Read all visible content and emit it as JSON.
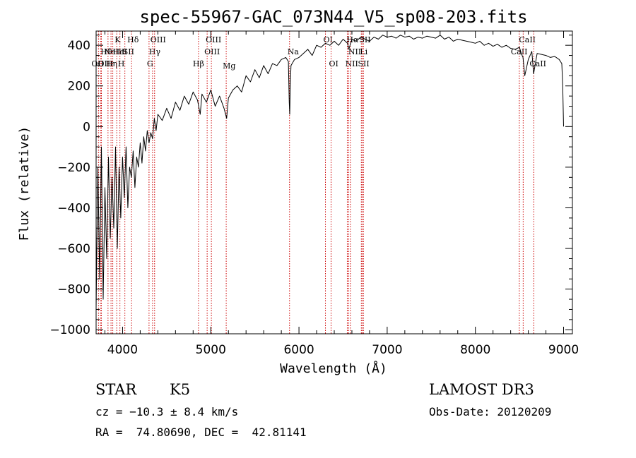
{
  "chart_data": {
    "type": "line",
    "title": "spec-55967-GAC_073N44_V5_sp08-203.fits",
    "xlabel": "Wavelength (Å)",
    "ylabel": "Flux (relative)",
    "xlim": [
      3700,
      9100
    ],
    "ylim": [
      -1020,
      470
    ],
    "xticks": [
      4000,
      5000,
      6000,
      7000,
      8000,
      9000
    ],
    "xtick_labels": [
      "4000",
      "5000",
      "6000",
      "7000",
      "8000",
      "9000"
    ],
    "yticks": [
      -1000,
      -800,
      -600,
      -400,
      -200,
      0,
      200,
      400
    ],
    "ytick_labels": [
      "−1000",
      "−800",
      "−600",
      "−400",
      "−200",
      "0",
      "200",
      "400"
    ],
    "series": [
      {
        "name": "flux",
        "x": [
          3700,
          3720,
          3740,
          3760,
          3780,
          3800,
          3820,
          3840,
          3860,
          3880,
          3900,
          3920,
          3940,
          3960,
          3980,
          4000,
          4020,
          4040,
          4060,
          4080,
          4100,
          4120,
          4140,
          4160,
          4180,
          4200,
          4220,
          4240,
          4260,
          4280,
          4300,
          4320,
          4340,
          4360,
          4380,
          4400,
          4450,
          4500,
          4550,
          4600,
          4650,
          4700,
          4750,
          4800,
          4850,
          4880,
          4900,
          4950,
          5000,
          5050,
          5100,
          5150,
          5180,
          5200,
          5250,
          5300,
          5350,
          5400,
          5450,
          5500,
          5550,
          5600,
          5650,
          5700,
          5750,
          5800,
          5850,
          5880,
          5890,
          5895,
          5900,
          5910,
          5950,
          6000,
          6050,
          6100,
          6150,
          6200,
          6250,
          6300,
          6350,
          6400,
          6450,
          6500,
          6550,
          6565,
          6600,
          6650,
          6700,
          6750,
          6800,
          6850,
          6900,
          6950,
          7000,
          7050,
          7100,
          7150,
          7200,
          7250,
          7300,
          7350,
          7400,
          7450,
          7500,
          7550,
          7600,
          7650,
          7700,
          7750,
          7800,
          7850,
          7900,
          7950,
          8000,
          8050,
          8100,
          8150,
          8200,
          8250,
          8300,
          8350,
          8400,
          8450,
          8500,
          8520,
          8540,
          8560,
          8600,
          8640,
          8660,
          8700,
          8750,
          8800,
          8850,
          8900,
          8950,
          8980,
          8990,
          9000
        ],
        "y": [
          -900,
          -200,
          -750,
          -100,
          -850,
          -300,
          -650,
          -150,
          -550,
          -250,
          -500,
          -100,
          -600,
          -200,
          -450,
          -150,
          -350,
          -100,
          -400,
          -200,
          -250,
          -120,
          -300,
          -150,
          -200,
          -80,
          -180,
          -50,
          -120,
          -20,
          -80,
          -30,
          -60,
          40,
          -20,
          60,
          30,
          90,
          40,
          120,
          80,
          150,
          110,
          170,
          130,
          60,
          160,
          120,
          180,
          100,
          150,
          90,
          40,
          140,
          180,
          200,
          170,
          250,
          220,
          280,
          240,
          300,
          260,
          310,
          300,
          330,
          340,
          320,
          120,
          60,
          180,
          300,
          330,
          340,
          360,
          380,
          350,
          400,
          390,
          410,
          400,
          420,
          400,
          430,
          410,
          380,
          430,
          420,
          440,
          430,
          420,
          440,
          430,
          450,
          440,
          445,
          435,
          450,
          440,
          445,
          430,
          440,
          435,
          445,
          440,
          435,
          450,
          430,
          440,
          420,
          430,
          425,
          420,
          415,
          410,
          420,
          400,
          410,
          395,
          405,
          390,
          400,
          385,
          380,
          390,
          360,
          340,
          250,
          330,
          370,
          260,
          360,
          355,
          350,
          340,
          345,
          330,
          310,
          200,
          0
        ]
      }
    ],
    "line_markers": [
      {
        "x": 3727,
        "label": "OII",
        "row": 2,
        "dx": -10
      },
      {
        "x": 3750,
        "label": "Hθ",
        "row": 1,
        "dx": 0
      },
      {
        "x": 3760,
        "label": "OIII",
        "row": 2,
        "dx": -5
      },
      {
        "x": 3835,
        "label": "Hη",
        "row": 2,
        "dx": -3
      },
      {
        "x": 3869,
        "label": "NeIII",
        "row": 1,
        "dx": -10
      },
      {
        "x": 3889,
        "label": "HeI",
        "row": 1,
        "dx": 0
      },
      {
        "x": 3934,
        "label": "K",
        "row": 0,
        "dx": -3
      },
      {
        "x": 3970,
        "label": "H",
        "row": 2,
        "dx": -3
      },
      {
        "x": 4026,
        "label": "SII",
        "row": 1,
        "dx": -3
      },
      {
        "x": 4102,
        "label": "Hδ",
        "row": 0,
        "dx": -6
      },
      {
        "x": 4300,
        "label": "G",
        "row": 2,
        "dx": -3
      },
      {
        "x": 4340,
        "label": "Hγ",
        "row": 1,
        "dx": -5
      },
      {
        "x": 4363,
        "label": "OIII",
        "row": 0,
        "dx": -6
      },
      {
        "x": 4861,
        "label": "Hβ",
        "row": 2,
        "dx": -8
      },
      {
        "x": 4959,
        "label": "OIII",
        "row": 1,
        "dx": -4
      },
      {
        "x": 5007,
        "label": "OIII",
        "row": 0,
        "dx": -8
      },
      {
        "x": 5175,
        "label": "Mg",
        "row": 3,
        "dx": -5
      },
      {
        "x": 5893,
        "label": "Na",
        "row": 1,
        "dx": -3
      },
      {
        "x": 6300,
        "label": "OI",
        "row": 0,
        "dx": -3
      },
      {
        "x": 6364,
        "label": "OI",
        "row": 2,
        "dx": -3
      },
      {
        "x": 6548,
        "label": "NII",
        "row": 2,
        "dx": -3
      },
      {
        "x": 6563,
        "label": "Hα",
        "row": 0,
        "dx": -3
      },
      {
        "x": 6583,
        "label": "NII",
        "row": 1,
        "dx": -3
      },
      {
        "x": 6707,
        "label": "Li",
        "row": 1,
        "dx": -2
      },
      {
        "x": 6716,
        "label": "SII",
        "row": 2,
        "dx": -6
      },
      {
        "x": 6731,
        "label": "SII",
        "row": 0,
        "dx": -6
      },
      {
        "x": 8498,
        "label": "CaII",
        "row": 1,
        "dx": -12
      },
      {
        "x": 8542,
        "label": "CaII",
        "row": 0,
        "dx": -6
      },
      {
        "x": 8662,
        "label": "CaII",
        "row": 2,
        "dx": -6
      }
    ]
  },
  "footer": {
    "object_class": "STAR",
    "subclass": "K5",
    "survey": "LAMOST DR3",
    "redshift": "cz = −10.3 ± 8.4 km/s",
    "obs_date": "Obs-Date: 20120209",
    "coords": "RA =  74.80690, DEC =  42.81141"
  },
  "colors": {
    "spectrum": "#000000",
    "marker": "#cc0000",
    "axis": "#000000"
  }
}
